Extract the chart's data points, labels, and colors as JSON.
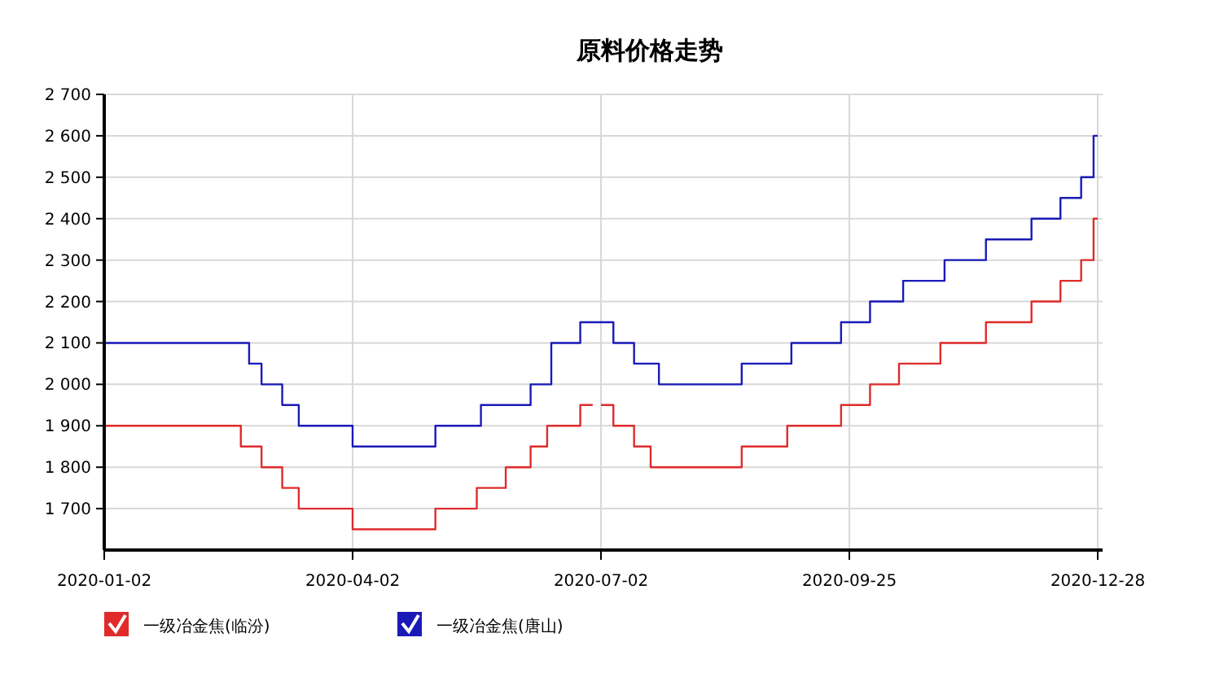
{
  "chart_data": {
    "type": "step",
    "title": "原料价格走势",
    "categories": [
      "2020-01-02",
      null,
      null,
      null,
      null,
      null,
      null,
      null,
      null,
      null,
      null,
      null,
      null,
      null,
      null,
      null,
      null,
      null,
      null,
      null,
      null,
      null,
      null,
      null,
      null,
      null,
      null,
      null,
      null,
      null,
      null,
      null,
      null,
      null,
      null,
      null,
      null,
      null,
      null,
      null,
      null,
      null,
      null,
      null,
      null,
      null,
      null,
      null,
      null,
      null,
      null,
      null,
      null,
      null,
      null,
      null,
      null,
      null,
      null,
      null,
      "2020-04-02",
      null,
      null,
      null,
      null,
      null,
      null,
      null,
      null,
      null,
      null,
      null,
      null,
      null,
      null,
      null,
      null,
      null,
      null,
      null,
      null,
      null,
      null,
      null,
      null,
      null,
      null,
      null,
      null,
      null,
      null,
      null,
      null,
      null,
      null,
      null,
      null,
      null,
      null,
      null,
      null,
      null,
      null,
      null,
      null,
      null,
      null,
      null,
      null,
      null,
      null,
      null,
      null,
      null,
      null,
      null,
      null,
      null,
      null,
      null,
      "2020-07-02",
      null,
      null,
      null,
      null,
      null,
      null,
      null,
      null,
      null,
      null,
      null,
      null,
      null,
      null,
      null,
      null,
      null,
      null,
      null,
      null,
      null,
      null,
      null,
      null,
      null,
      null,
      null,
      null,
      null,
      null,
      null,
      null,
      null,
      null,
      null,
      null,
      null,
      null,
      null,
      null,
      null,
      null,
      null,
      null,
      null,
      null,
      null,
      null,
      null,
      null,
      null,
      null,
      null,
      null,
      null,
      null,
      null,
      null,
      null,
      "2020-09-25",
      null,
      null,
      null,
      null,
      null,
      null,
      null,
      null,
      null,
      null,
      null,
      null,
      null,
      null,
      null,
      null,
      null,
      null,
      null,
      null,
      null,
      null,
      null,
      null,
      null,
      null,
      null,
      null,
      null,
      null,
      null,
      null,
      null,
      null,
      null,
      null,
      null,
      null,
      null,
      null,
      null,
      null,
      null,
      null,
      null,
      null,
      null,
      null,
      null,
      null,
      null,
      null,
      null,
      null,
      null,
      null,
      null,
      null,
      null,
      "2020-12-28"
    ],
    "ylim": [
      1600,
      2700
    ],
    "yticks": [
      {
        "value": 1700,
        "label": "1 700"
      },
      {
        "value": 1800,
        "label": "1 800"
      },
      {
        "value": 1900,
        "label": "1 900"
      },
      {
        "value": 2000,
        "label": "2 000"
      },
      {
        "value": 2100,
        "label": "2 100"
      },
      {
        "value": 2200,
        "label": "2 200"
      },
      {
        "value": 2300,
        "label": "2 300"
      },
      {
        "value": 2400,
        "label": "2 400"
      },
      {
        "value": 2500,
        "label": "2 500"
      },
      {
        "value": 2600,
        "label": "2 600"
      },
      {
        "value": 2700,
        "label": "2 700"
      }
    ],
    "grid": true,
    "legend": "bottom",
    "marker": "none",
    "line_style": "solid",
    "series": [
      {
        "name": "一级冶金焦(临汾)",
        "color": "#e02b2b",
        "values": [
          1900,
          1900,
          1900,
          1900,
          1900,
          1900,
          1900,
          1900,
          1900,
          1900,
          1900,
          1900,
          1900,
          1900,
          1900,
          1900,
          1900,
          1900,
          1900,
          1900,
          1900,
          1900,
          1900,
          1900,
          1900,
          1900,
          1900,
          1900,
          1900,
          1900,
          1900,
          1900,
          1900,
          1850,
          1850,
          1850,
          1850,
          1850,
          1800,
          1800,
          1800,
          1800,
          1800,
          1750,
          1750,
          1750,
          1750,
          1700,
          1700,
          1700,
          1700,
          1700,
          1700,
          1700,
          1700,
          1700,
          1700,
          1700,
          1700,
          1700,
          1650,
          1650,
          1650,
          1650,
          1650,
          1650,
          1650,
          1650,
          1650,
          1650,
          1650,
          1650,
          1650,
          1650,
          1650,
          1650,
          1650,
          1650,
          1650,
          1650,
          1700,
          1700,
          1700,
          1700,
          1700,
          1700,
          1700,
          1700,
          1700,
          1700,
          1750,
          1750,
          1750,
          1750,
          1750,
          1750,
          1750,
          1800,
          1800,
          1800,
          1800,
          1800,
          1800,
          1850,
          1850,
          1850,
          1850,
          1900,
          1900,
          1900,
          1900,
          1900,
          1900,
          1900,
          1900,
          1950,
          1950,
          1950,
          1950,
          null,
          1950,
          1950,
          1950,
          1900,
          1900,
          1900,
          1900,
          1900,
          1850,
          1850,
          1850,
          1850,
          1800,
          1800,
          1800,
          1800,
          1800,
          1800,
          1800,
          1800,
          1800,
          1800,
          1800,
          1800,
          1800,
          1800,
          1800,
          1800,
          1800,
          1800,
          1800,
          1800,
          1800,
          1800,
          1850,
          1850,
          1850,
          1850,
          1850,
          1850,
          1850,
          1850,
          1850,
          1850,
          1850,
          1900,
          1900,
          1900,
          1900,
          1900,
          1900,
          1900,
          1900,
          1900,
          1900,
          1900,
          1900,
          1900,
          1950,
          1950,
          1950,
          1950,
          1950,
          1950,
          1950,
          2000,
          2000,
          2000,
          2000,
          2000,
          2000,
          2000,
          2050,
          2050,
          2050,
          2050,
          2050,
          2050,
          2050,
          2050,
          2050,
          2050,
          2100,
          2100,
          2100,
          2100,
          2100,
          2100,
          2100,
          2100,
          2100,
          2100,
          2100,
          2150,
          2150,
          2150,
          2150,
          2150,
          2150,
          2150,
          2150,
          2150,
          2150,
          2150,
          2200,
          2200,
          2200,
          2200,
          2200,
          2200,
          2200,
          2250,
          2250,
          2250,
          2250,
          2250,
          2300,
          2300,
          2300,
          2400,
          2400
        ]
      },
      {
        "name": "一级冶金焦(唐山)",
        "color": "#1a1ab8",
        "values": [
          2100,
          2100,
          2100,
          2100,
          2100,
          2100,
          2100,
          2100,
          2100,
          2100,
          2100,
          2100,
          2100,
          2100,
          2100,
          2100,
          2100,
          2100,
          2100,
          2100,
          2100,
          2100,
          2100,
          2100,
          2100,
          2100,
          2100,
          2100,
          2100,
          2100,
          2100,
          2100,
          2100,
          2100,
          2100,
          2050,
          2050,
          2050,
          2000,
          2000,
          2000,
          2000,
          2000,
          1950,
          1950,
          1950,
          1950,
          1900,
          1900,
          1900,
          1900,
          1900,
          1900,
          1900,
          1900,
          1900,
          1900,
          1900,
          1900,
          1900,
          1850,
          1850,
          1850,
          1850,
          1850,
          1850,
          1850,
          1850,
          1850,
          1850,
          1850,
          1850,
          1850,
          1850,
          1850,
          1850,
          1850,
          1850,
          1850,
          1850,
          1900,
          1900,
          1900,
          1900,
          1900,
          1900,
          1900,
          1900,
          1900,
          1900,
          1900,
          1950,
          1950,
          1950,
          1950,
          1950,
          1950,
          1950,
          1950,
          1950,
          1950,
          1950,
          1950,
          2000,
          2000,
          2000,
          2000,
          2000,
          2100,
          2100,
          2100,
          2100,
          2100,
          2100,
          2100,
          2150,
          2150,
          2150,
          2150,
          2150,
          2150,
          2150,
          2150,
          2100,
          2100,
          2100,
          2100,
          2100,
          2050,
          2050,
          2050,
          2050,
          2050,
          2050,
          2000,
          2000,
          2000,
          2000,
          2000,
          2000,
          2000,
          2000,
          2000,
          2000,
          2000,
          2000,
          2000,
          2000,
          2000,
          2000,
          2000,
          2000,
          2000,
          2000,
          2050,
          2050,
          2050,
          2050,
          2050,
          2050,
          2050,
          2050,
          2050,
          2050,
          2050,
          2050,
          2100,
          2100,
          2100,
          2100,
          2100,
          2100,
          2100,
          2100,
          2100,
          2100,
          2100,
          2100,
          2150,
          2150,
          2150,
          2150,
          2150,
          2150,
          2150,
          2200,
          2200,
          2200,
          2200,
          2200,
          2200,
          2200,
          2200,
          2250,
          2250,
          2250,
          2250,
          2250,
          2250,
          2250,
          2250,
          2250,
          2250,
          2300,
          2300,
          2300,
          2300,
          2300,
          2300,
          2300,
          2300,
          2300,
          2300,
          2350,
          2350,
          2350,
          2350,
          2350,
          2350,
          2350,
          2350,
          2350,
          2350,
          2350,
          2400,
          2400,
          2400,
          2400,
          2400,
          2400,
          2400,
          2450,
          2450,
          2450,
          2450,
          2450,
          2500,
          2500,
          2500,
          2600,
          2600
        ]
      }
    ]
  }
}
